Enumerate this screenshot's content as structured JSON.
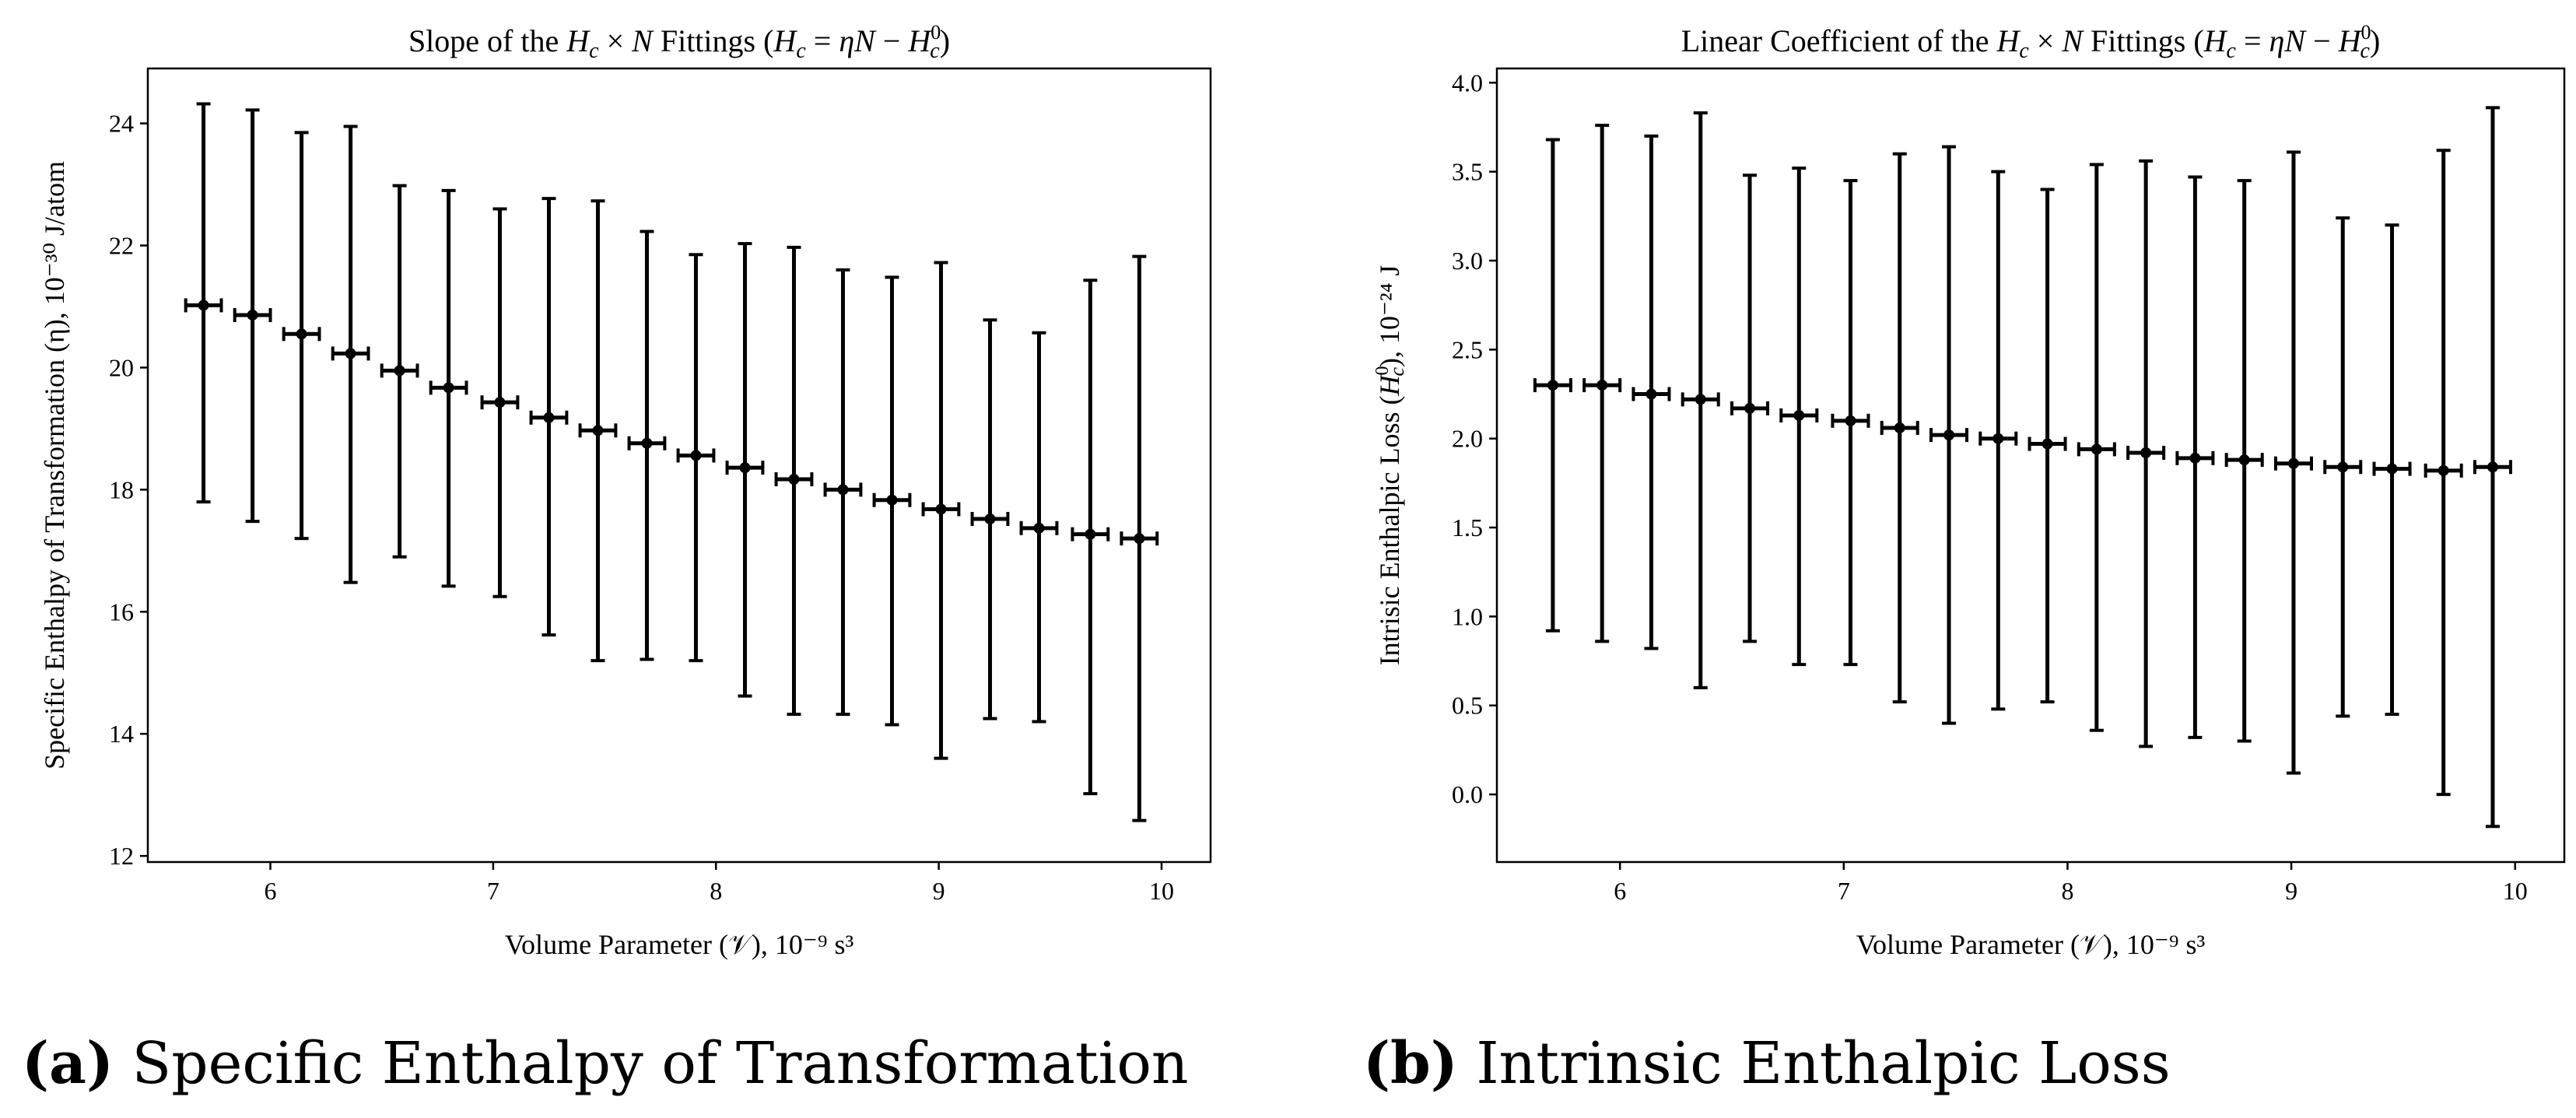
{
  "charts": [
    {
      "caption_tag": "(a)",
      "caption_text": "Specific Enthalpy of Transformation",
      "chart_data": {
        "type": "scatter",
        "title": "Slope of the H_c × N Fittings (H_c = ηN − H_c^0)",
        "title_parts": {
          "pre": "Slope of the ",
          "mid": " Fittings (",
          "post": ")"
        },
        "xlabel": "Volume Parameter (𝒱), 10⁻⁹ s³",
        "ylabel": "Specific Enthalpy of Transformation (η), 10⁻³⁰ J/atom",
        "xlim": [
          5.45,
          10.22
        ],
        "ylim": [
          11.9,
          24.9
        ],
        "xticks": [
          6,
          7,
          8,
          9,
          10
        ],
        "yticks": [
          12,
          14,
          16,
          18,
          20,
          22,
          24
        ],
        "grid": false,
        "x": [
          5.7,
          5.92,
          6.14,
          6.36,
          6.58,
          6.8,
          7.03,
          7.25,
          7.47,
          7.69,
          7.91,
          8.13,
          8.35,
          8.57,
          8.79,
          9.01,
          9.23,
          9.45,
          9.68,
          9.9
        ],
        "y": [
          21.02,
          20.86,
          20.55,
          20.23,
          19.95,
          19.67,
          19.43,
          19.18,
          18.97,
          18.76,
          18.56,
          18.36,
          18.17,
          18.0,
          17.83,
          17.68,
          17.52,
          17.37,
          17.27,
          17.2
        ],
        "y_err_low": [
          17.8,
          17.48,
          17.2,
          16.48,
          16.9,
          16.42,
          16.25,
          15.62,
          15.2,
          15.22,
          15.2,
          14.62,
          14.32,
          14.32,
          14.15,
          13.6,
          14.25,
          14.2,
          13.02,
          12.58
        ],
        "y_err_high": [
          24.32,
          24.22,
          23.85,
          23.95,
          22.98,
          22.9,
          22.6,
          22.77,
          22.73,
          22.23,
          21.85,
          22.03,
          21.97,
          21.6,
          21.48,
          21.72,
          20.78,
          20.57,
          21.43,
          21.82
        ],
        "x_err": 0.08
      }
    },
    {
      "caption_tag": "(b)",
      "caption_text": "Intrinsic Enthalpic Loss",
      "chart_data": {
        "type": "scatter",
        "title": "Linear Coefficient of the H_c × N Fittings (H_c = ηN − H_c^0)",
        "title_parts": {
          "pre": "Linear Coefficient of the ",
          "mid": " Fittings (",
          "post": ")"
        },
        "xlabel": "Volume Parameter (𝒱), 10⁻⁹ s³",
        "ylabel": "Intrisic Enthalpic Loss (H_c^0), 10⁻²⁴ J",
        "xlim": [
          5.45,
          10.22
        ],
        "ylim": [
          -0.38,
          4.08
        ],
        "xticks": [
          6,
          7,
          8,
          9,
          10
        ],
        "yticks": [
          0.0,
          0.5,
          1.0,
          1.5,
          2.0,
          2.5,
          3.0,
          3.5,
          4.0
        ],
        "grid": false,
        "x": [
          5.7,
          5.92,
          6.14,
          6.36,
          6.58,
          6.8,
          7.03,
          7.25,
          7.47,
          7.69,
          7.91,
          8.13,
          8.35,
          8.57,
          8.79,
          9.01,
          9.23,
          9.45,
          9.68,
          9.9
        ],
        "y": [
          2.3,
          2.3,
          2.25,
          2.22,
          2.17,
          2.13,
          2.1,
          2.06,
          2.02,
          2.0,
          1.97,
          1.94,
          1.92,
          1.89,
          1.88,
          1.86,
          1.84,
          1.83,
          1.82,
          1.84
        ],
        "y_err_low": [
          0.92,
          0.86,
          0.82,
          0.6,
          0.86,
          0.73,
          0.73,
          0.52,
          0.4,
          0.48,
          0.52,
          0.36,
          0.27,
          0.32,
          0.3,
          0.12,
          0.44,
          0.45,
          0.0,
          -0.18
        ],
        "y_err_high": [
          3.68,
          3.76,
          3.7,
          3.83,
          3.48,
          3.52,
          3.45,
          3.6,
          3.64,
          3.5,
          3.4,
          3.54,
          3.56,
          3.47,
          3.45,
          3.61,
          3.24,
          3.2,
          3.62,
          3.86
        ],
        "x_err": 0.08
      }
    }
  ]
}
